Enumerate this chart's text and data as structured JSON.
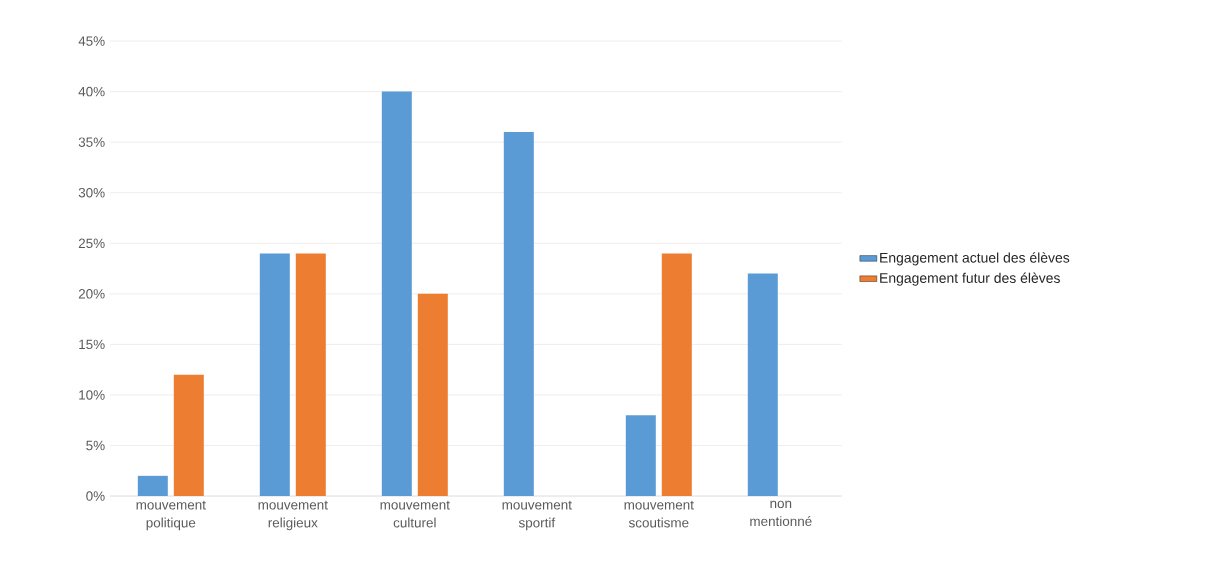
{
  "chart_data": {
    "type": "bar",
    "categories": [
      "mouvement politique",
      "mouvement religieux",
      "mouvement culturel",
      "mouvement sportif",
      "mouvement scoutisme",
      "non mentionné"
    ],
    "series": [
      {
        "name": "Engagement actuel des élèves",
        "color": "#5b9bd5",
        "values": [
          2,
          24,
          40,
          36,
          8,
          22
        ]
      },
      {
        "name": "Engagement futur des élèves",
        "color": "#ed7d31",
        "values": [
          12,
          24,
          20,
          null,
          24,
          null
        ]
      }
    ],
    "ylim": [
      0,
      45
    ],
    "yticks": [
      {
        "value": 0,
        "label": "0%"
      },
      {
        "value": 5,
        "label": "5%"
      },
      {
        "value": 10,
        "label": "10%"
      },
      {
        "value": 15,
        "label": "15%"
      },
      {
        "value": 20,
        "label": "20%"
      },
      {
        "value": 25,
        "label": "25%"
      },
      {
        "value": 30,
        "label": "30%"
      },
      {
        "value": 35,
        "label": "35%"
      },
      {
        "value": 40,
        "label": "40%"
      },
      {
        "value": 45,
        "label": "45%"
      }
    ],
    "grid": "y",
    "legend": "right"
  }
}
